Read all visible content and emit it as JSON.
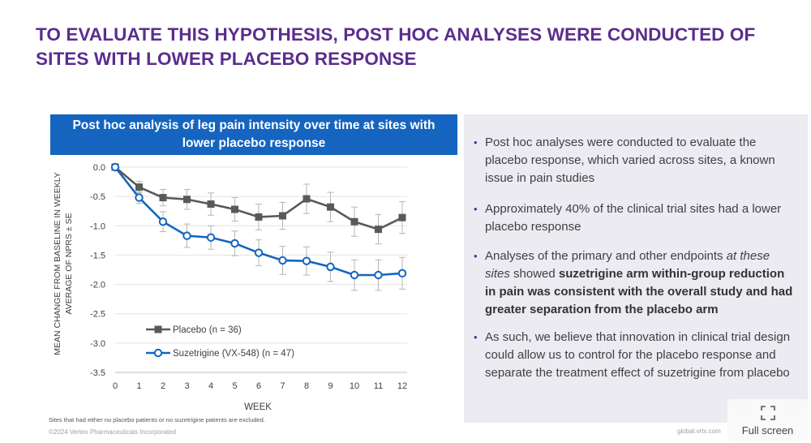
{
  "slide": {
    "title_line1": "TO EVALUATE THIS HYPOTHESIS, POST HOC ANALYSES WERE CONDUCTED OF",
    "title_line2": "SITES WITH LOWER PLACEBO RESPONSE",
    "title_color": "#5b2d8e"
  },
  "chart_header": {
    "line1": "Post hoc analysis of leg pain intensity over time at sites with",
    "line2": "lower placebo response",
    "bg_color": "#1565c0"
  },
  "chart_data": {
    "type": "line",
    "title": "Post hoc analysis of leg pain intensity over time at sites with lower placebo response",
    "xlabel": "WEEK",
    "ylabel_line1": "MEAN CHANGE FROM BASELINE IN WEEKLY",
    "ylabel_line2": "AVERAGE OF NPRS ± SE",
    "x": [
      0,
      1,
      2,
      3,
      4,
      5,
      6,
      7,
      8,
      9,
      10,
      11,
      12
    ],
    "xlim": [
      0,
      12
    ],
    "ylim": [
      -3.5,
      0
    ],
    "yticks": [
      0,
      -0.5,
      -1,
      -1.5,
      -2,
      -2.5,
      -3,
      -3.5
    ],
    "ytick_labels": [
      "0.0",
      "-0.5",
      "-1.0",
      "-1.5",
      "-2.0",
      "-2.5",
      "-3.0",
      "-3.5"
    ],
    "grid": "horizontal",
    "legend_position": "bottom-left",
    "series": [
      {
        "name": "Placebo (n = 36)",
        "color": "#595959",
        "marker": "square",
        "values": [
          0,
          -0.34,
          -0.52,
          -0.55,
          -0.63,
          -0.72,
          -0.85,
          -0.83,
          -0.54,
          -0.68,
          -0.93,
          -1.06,
          -0.86
        ],
        "se": [
          0,
          0.1,
          0.14,
          0.17,
          0.19,
          0.2,
          0.22,
          0.23,
          0.25,
          0.25,
          0.25,
          0.25,
          0.27
        ]
      },
      {
        "name": "Suzetrigine (VX-548)  (n = 47)",
        "color": "#1565c0",
        "marker": "circle-open",
        "values": [
          0,
          -0.52,
          -0.93,
          -1.17,
          -1.2,
          -1.3,
          -1.46,
          -1.59,
          -1.6,
          -1.7,
          -1.84,
          -1.84,
          -1.81
        ],
        "se": [
          0,
          0.1,
          0.17,
          0.2,
          0.2,
          0.21,
          0.22,
          0.24,
          0.24,
          0.25,
          0.26,
          0.26,
          0.27
        ]
      }
    ]
  },
  "bullets": [
    {
      "segments": [
        {
          "text": "Post hoc analyses were conducted to evaluate the placebo response, which varied across sites, a known issue in pain studies",
          "style": "normal"
        }
      ]
    },
    {
      "segments": [
        {
          "text": "Approximately 40% of the clinical trial sites had a lower placebo response",
          "style": "normal"
        }
      ]
    },
    {
      "segments": [
        {
          "text": "Analyses of the primary and other endpoints ",
          "style": "normal"
        },
        {
          "text": "at these sites",
          "style": "italic"
        },
        {
          "text": " showed ",
          "style": "normal"
        },
        {
          "text": "suzetrigine arm within-group reduction in pain was consistent with the overall study and had greater separation from the placebo arm",
          "style": "bold"
        }
      ]
    },
    {
      "segments": [
        {
          "text": "As such, we believe that innovation in clinical trial design could allow us to control for the placebo response and separate the treatment effect of suzetrigine from placebo",
          "style": "normal"
        }
      ]
    }
  ],
  "footnote": "Sites that had either no placebo patients or no suzetrigine patients are excluded.",
  "copyright": "©2024 Vertex Pharmaceuticals Incorporated",
  "site_url": "global.vrtx.com",
  "fullscreen": {
    "label": "Full screen",
    "icon": "fullscreen-icon"
  }
}
